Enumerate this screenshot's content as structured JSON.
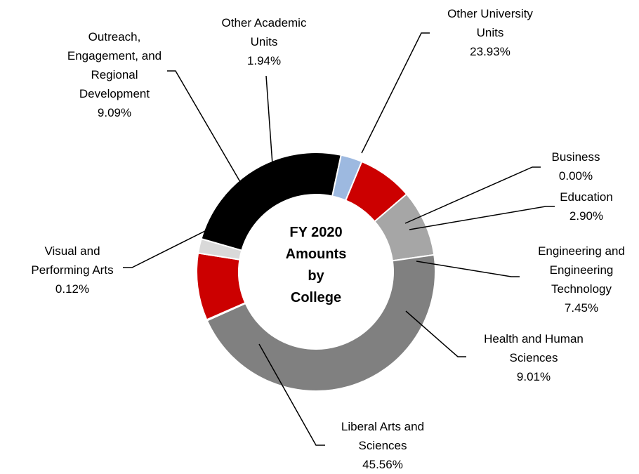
{
  "chart_data": {
    "type": "donut",
    "center_title_lines": [
      "FY 2020",
      "Amounts",
      "by",
      "College"
    ],
    "slices": [
      {
        "name": "Other University Units",
        "label_lines": [
          "Other University",
          "Units"
        ],
        "value": 23.93,
        "value_label": "23.93%",
        "color": "#000000"
      },
      {
        "name": "Business",
        "label_lines": [
          "Business"
        ],
        "value": 0.0,
        "value_label": "0.00%",
        "color": "#9DB9E0"
      },
      {
        "name": "Education",
        "label_lines": [
          "Education"
        ],
        "value": 2.9,
        "value_label": "2.90%",
        "color": "#9DB9E0"
      },
      {
        "name": "Engineering and Engineering Technology",
        "label_lines": [
          "Engineering and",
          "Engineering",
          "Technology"
        ],
        "value": 7.45,
        "value_label": "7.45%",
        "color": "#CC0000"
      },
      {
        "name": "Health and Human Sciences",
        "label_lines": [
          "Health and Human",
          "Sciences"
        ],
        "value": 9.01,
        "value_label": "9.01%",
        "color": "#A6A6A6"
      },
      {
        "name": "Liberal Arts and Sciences",
        "label_lines": [
          "Liberal Arts and",
          "Sciences"
        ],
        "value": 45.56,
        "value_label": "45.56%",
        "color": "#808080"
      },
      {
        "name": "Visual and Performing Arts",
        "label_lines": [
          "Visual and",
          "Performing Arts"
        ],
        "value": 0.12,
        "value_label": "0.12%",
        "color": "#CC0000"
      },
      {
        "name": "Outreach, Engagement, and Regional Development",
        "label_lines": [
          "Outreach,",
          "Engagement, and",
          "Regional",
          "Development"
        ],
        "value": 9.09,
        "value_label": "9.09%",
        "color": "#CC0000"
      },
      {
        "name": "Other Academic Units",
        "label_lines": [
          "Other Academic",
          "Units"
        ],
        "value": 1.94,
        "value_label": "1.94%",
        "color": "#D9D9D9"
      }
    ]
  }
}
